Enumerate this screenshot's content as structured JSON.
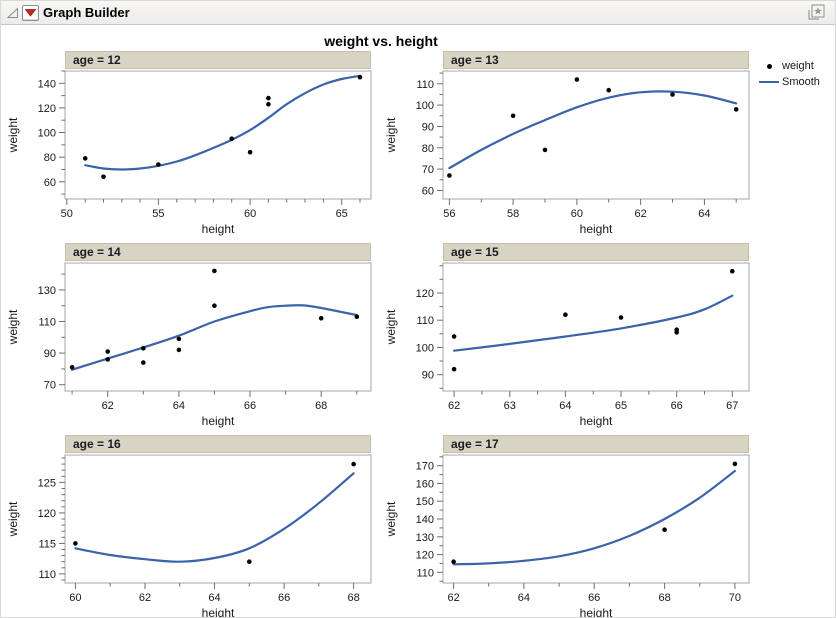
{
  "window": {
    "title": "Graph Builder",
    "icons": {
      "disclosure": "open-disclosure-triangle",
      "menu": "red-triangle-menu",
      "corner": "layered-window-star"
    }
  },
  "graph_title": "weight vs. height",
  "legend": {
    "items": [
      {
        "label": "weight",
        "type": "point"
      },
      {
        "label": "Smooth",
        "type": "line"
      }
    ]
  },
  "colors": {
    "smooth_line": "#3b63a9",
    "point": "#000000",
    "panel_header_bg": "#d8d4c4",
    "frame": "#a6a6a6",
    "tick": "#6f6f6f",
    "text": "#1a1a1a",
    "red_triangle": "#cc2222"
  },
  "chart_data": {
    "type": "scatter",
    "title": "weight vs. height",
    "xlabel": "height",
    "ylabel": "weight",
    "facet_variable": "age",
    "grid": false,
    "legend_position": "top-right",
    "series_names": [
      "weight",
      "Smooth"
    ],
    "panels": [
      {
        "label": "age = 12",
        "xlim": [
          49.9,
          66.6
        ],
        "ylim": [
          46,
          150
        ],
        "xticks": [
          50,
          55,
          60,
          65
        ],
        "xminor": 5,
        "yticks": [
          60,
          80,
          100,
          120,
          140
        ],
        "yminor": 2,
        "points": [
          [
            51,
            79
          ],
          [
            52,
            64
          ],
          [
            55,
            74
          ],
          [
            59,
            95
          ],
          [
            60,
            84
          ],
          [
            61,
            123
          ],
          [
            61,
            128
          ],
          [
            66,
            145
          ]
        ],
        "curve": [
          [
            51,
            73.5
          ],
          [
            52,
            70.8
          ],
          [
            53,
            70
          ],
          [
            54,
            70.8
          ],
          [
            55,
            73
          ],
          [
            56,
            76.5
          ],
          [
            57,
            81.5
          ],
          [
            58,
            87.5
          ],
          [
            59,
            94
          ],
          [
            60,
            102
          ],
          [
            61,
            112
          ],
          [
            62,
            123
          ],
          [
            63,
            132
          ],
          [
            64,
            139
          ],
          [
            65,
            143.5
          ],
          [
            66,
            146
          ]
        ]
      },
      {
        "label": "age = 13",
        "xlim": [
          55.8,
          65.4
        ],
        "ylim": [
          56,
          116
        ],
        "xticks": [
          56,
          58,
          60,
          62,
          64
        ],
        "xminor": 2,
        "yticks": [
          60,
          70,
          80,
          90,
          100,
          110
        ],
        "yminor": 2,
        "points": [
          [
            56,
            67
          ],
          [
            58,
            95
          ],
          [
            59,
            79
          ],
          [
            60,
            112
          ],
          [
            61,
            107
          ],
          [
            63,
            105
          ],
          [
            65,
            98
          ]
        ],
        "curve": [
          [
            56,
            70.5
          ],
          [
            57,
            79
          ],
          [
            58,
            86.5
          ],
          [
            59,
            93
          ],
          [
            60,
            99
          ],
          [
            61,
            103.5
          ],
          [
            62,
            106
          ],
          [
            63,
            106.3
          ],
          [
            64,
            104.5
          ],
          [
            65,
            100.8
          ]
        ]
      },
      {
        "label": "age = 14",
        "xlim": [
          60.8,
          69.4
        ],
        "ylim": [
          66,
          147
        ],
        "xticks": [
          62,
          64,
          66,
          68
        ],
        "xminor": 2,
        "yticks": [
          70,
          90,
          110,
          130
        ],
        "yminor": 2,
        "points": [
          [
            61,
            81
          ],
          [
            62,
            91
          ],
          [
            62,
            86
          ],
          [
            63,
            93
          ],
          [
            63,
            84
          ],
          [
            64,
            99
          ],
          [
            64,
            92
          ],
          [
            65,
            142
          ],
          [
            65,
            120
          ],
          [
            68,
            112
          ],
          [
            69,
            113
          ]
        ],
        "curve": [
          [
            61,
            79.5
          ],
          [
            62,
            86.5
          ],
          [
            63,
            93.5
          ],
          [
            64,
            101
          ],
          [
            65,
            110
          ],
          [
            66,
            116.5
          ],
          [
            66.5,
            119
          ],
          [
            67,
            120
          ],
          [
            67.5,
            120.2
          ],
          [
            68,
            118.5
          ],
          [
            69,
            114
          ]
        ]
      },
      {
        "label": "age = 15",
        "xlim": [
          61.8,
          67.3
        ],
        "ylim": [
          84,
          131
        ],
        "xticks": [
          62,
          63,
          64,
          65,
          66,
          67
        ],
        "xminor": 2,
        "yticks": [
          90,
          100,
          110,
          120
        ],
        "yminor": 2,
        "points": [
          [
            62,
            104
          ],
          [
            62,
            92
          ],
          [
            64,
            112
          ],
          [
            65,
            111
          ],
          [
            66,
            106.5
          ],
          [
            66,
            105.5
          ],
          [
            67,
            128
          ]
        ],
        "curve": [
          [
            62,
            98.8
          ],
          [
            63,
            101.3
          ],
          [
            64,
            104
          ],
          [
            65,
            107
          ],
          [
            66,
            111
          ],
          [
            66.5,
            114
          ],
          [
            67,
            119
          ]
        ]
      },
      {
        "label": "age = 16",
        "xlim": [
          59.7,
          68.5
        ],
        "ylim": [
          108.5,
          129.5
        ],
        "xticks": [
          60,
          62,
          64,
          66,
          68
        ],
        "xminor": 2,
        "yticks": [
          110,
          115,
          120,
          125
        ],
        "yminor": 5,
        "points": [
          [
            60,
            115
          ],
          [
            65,
            112
          ],
          [
            68,
            128
          ]
        ],
        "curve": [
          [
            60,
            114.2
          ],
          [
            61,
            113.1
          ],
          [
            62,
            112.4
          ],
          [
            63,
            112
          ],
          [
            64,
            112.6
          ],
          [
            65,
            114.2
          ],
          [
            66,
            117.4
          ],
          [
            67,
            121.6
          ],
          [
            68,
            126.5
          ]
        ]
      },
      {
        "label": "age = 17",
        "xlim": [
          61.7,
          70.4
        ],
        "ylim": [
          104,
          176
        ],
        "xticks": [
          62,
          64,
          66,
          68,
          70
        ],
        "xminor": 2,
        "yticks": [
          110,
          120,
          130,
          140,
          150,
          160,
          170
        ],
        "yminor": 2,
        "points": [
          [
            62,
            116
          ],
          [
            68,
            134
          ],
          [
            70,
            171
          ]
        ],
        "curve": [
          [
            62,
            114.5
          ],
          [
            63,
            115
          ],
          [
            64,
            116.5
          ],
          [
            65,
            119
          ],
          [
            66,
            123.5
          ],
          [
            67,
            130.5
          ],
          [
            68,
            140
          ],
          [
            69,
            152
          ],
          [
            70,
            167
          ]
        ]
      }
    ]
  }
}
